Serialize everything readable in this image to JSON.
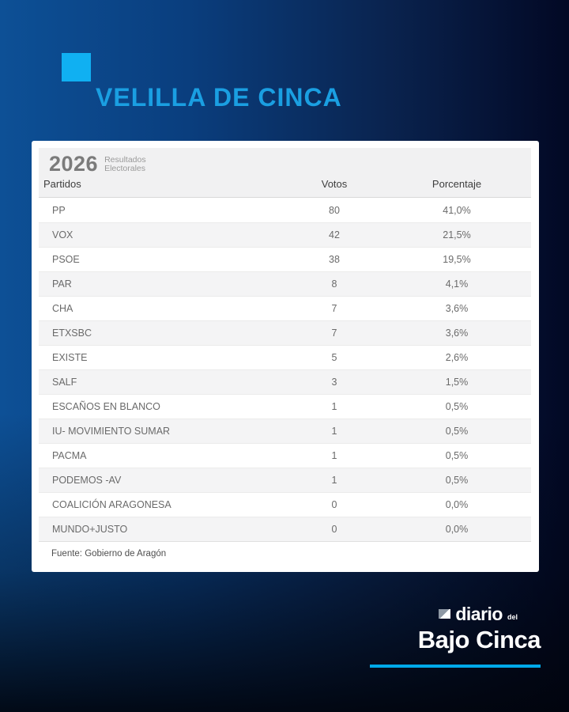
{
  "header": {
    "title": "VELILLA DE CINCA",
    "accent_color": "#10b0f2"
  },
  "card": {
    "year": "2026",
    "subtitle_line1": "Resultados",
    "subtitle_line2": "Electorales",
    "columns": {
      "party": "Partidos",
      "votes": "Votos",
      "percent": "Porcentaje"
    },
    "rows": [
      {
        "party": "PP",
        "votes": "80",
        "percent": "41,0%"
      },
      {
        "party": "VOX",
        "votes": "42",
        "percent": "21,5%"
      },
      {
        "party": "PSOE",
        "votes": "38",
        "percent": "19,5%"
      },
      {
        "party": "PAR",
        "votes": "8",
        "percent": "4,1%"
      },
      {
        "party": "CHA",
        "votes": "7",
        "percent": "3,6%"
      },
      {
        "party": "ETXSBC",
        "votes": "7",
        "percent": "3,6%"
      },
      {
        "party": "EXISTE",
        "votes": "5",
        "percent": "2,6%"
      },
      {
        "party": "SALF",
        "votes": "3",
        "percent": "1,5%"
      },
      {
        "party": "ESCAÑOS EN BLANCO",
        "votes": "1",
        "percent": "0,5%"
      },
      {
        "party": "IU- MOVIMIENTO SUMAR",
        "votes": "1",
        "percent": "0,5%"
      },
      {
        "party": "PACMA",
        "votes": "1",
        "percent": "0,5%"
      },
      {
        "party": "PODEMOS -AV",
        "votes": "1",
        "percent": "0,5%"
      },
      {
        "party": "COALICIÓN ARAGONESA",
        "votes": "0",
        "percent": "0,0%"
      },
      {
        "party": "MUNDO+JUSTO",
        "votes": "0",
        "percent": "0,0%"
      }
    ],
    "source": "Fuente: Gobierno de Aragón"
  },
  "brand": {
    "name": "diario",
    "del": "del",
    "main": "Bajo Cinca",
    "rule_color": "#00a9e9"
  },
  "chart_data": {
    "type": "table",
    "title": "VELILLA DE CINCA",
    "subtitle": "2026 Resultados Electorales",
    "columns": [
      "Partidos",
      "Votos",
      "Porcentaje"
    ],
    "rows": [
      [
        "PP",
        80,
        "41,0%"
      ],
      [
        "VOX",
        42,
        "21,5%"
      ],
      [
        "PSOE",
        38,
        "19,5%"
      ],
      [
        "PAR",
        8,
        "4,1%"
      ],
      [
        "CHA",
        7,
        "3,6%"
      ],
      [
        "ETXSBC",
        7,
        "3,6%"
      ],
      [
        "EXISTE",
        5,
        "2,6%"
      ],
      [
        "SALF",
        3,
        "1,5%"
      ],
      [
        "ESCAÑOS EN BLANCO",
        1,
        "0,5%"
      ],
      [
        "IU- MOVIMIENTO SUMAR",
        1,
        "0,5%"
      ],
      [
        "PACMA",
        1,
        "0,5%"
      ],
      [
        "PODEMOS -AV",
        1,
        "0,5%"
      ],
      [
        "COALICIÓN ARAGONESA",
        0,
        "0,0%"
      ],
      [
        "MUNDO+JUSTO",
        0,
        "0,0%"
      ]
    ],
    "source": "Fuente: Gobierno de Aragón"
  }
}
